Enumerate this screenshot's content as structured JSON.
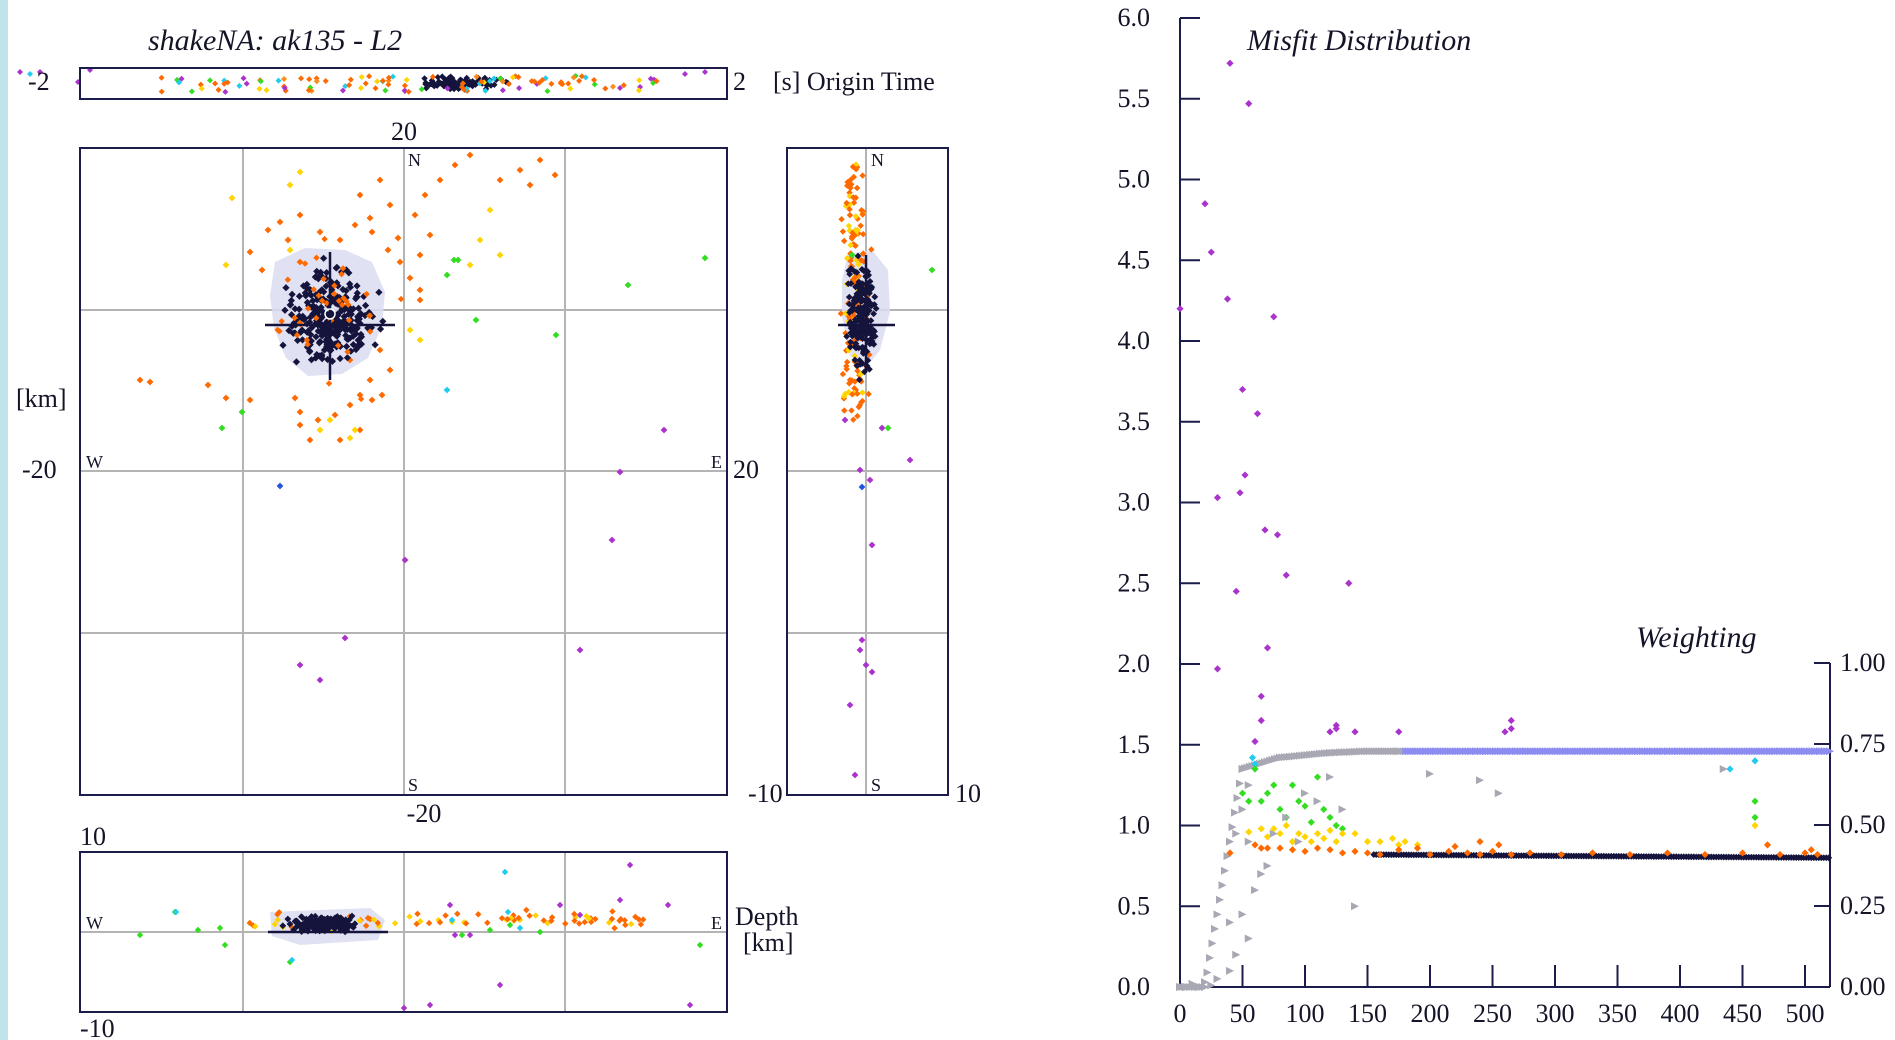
{
  "left_title": "shakeNA:  ak135 - L2",
  "origin_time": {
    "label": "[s] Origin Time",
    "min_label": "-2",
    "max_label": "2"
  },
  "map": {
    "north_label": "N",
    "south_label": "S",
    "west_label": "W",
    "east_label": "E",
    "top_tick": "20",
    "bottom_tick": "-20",
    "left_tick": "-20",
    "y_unit": "[km]",
    "grid_step_km": 10
  },
  "side_view": {
    "north_label": "N",
    "south_label": "S",
    "right_tick_mid": "20",
    "left_tick_bottom": "-10",
    "right_tick_bottom": "10"
  },
  "depth_view": {
    "top_tick": "10",
    "bottom_tick": "-10",
    "west_label": "W",
    "east_label": "E",
    "label_line1": "Depth",
    "label_line2": "[km]"
  },
  "colors": {
    "frame": "#1c1c4a",
    "grid": "#b4b4b4",
    "best": "#14143c",
    "orange": "#ff6a00",
    "orange2": "#ff8c1a",
    "yellow": "#ffd400",
    "green": "#33dd22",
    "cyan": "#22ccee",
    "blue": "#2255dd",
    "purple": "#aa33cc",
    "weight_gray": "#a8a8b4",
    "weight_blue": "#8c8cf0"
  },
  "chart_data": {
    "type": "scatter",
    "title": "Misfit Distribution",
    "secondary_title": "Weighting",
    "x_ticks": [
      "0",
      "50",
      "100",
      "150",
      "200",
      "250",
      "300",
      "350",
      "400",
      "450",
      "500"
    ],
    "y_ticks": [
      "0.0",
      "0.5",
      "1.0",
      "1.5",
      "2.0",
      "2.5",
      "3.0",
      "3.5",
      "4.0",
      "4.5",
      "5.0",
      "5.5",
      "6.0"
    ],
    "y2_ticks": [
      "0.00",
      "0.25",
      "0.50",
      "0.75",
      "1.00"
    ],
    "xlim": [
      0,
      520
    ],
    "ylim": [
      0,
      6
    ],
    "y2lim": [
      0,
      1
    ],
    "grid": false,
    "series": [
      {
        "values": [
          [
            0,
            4.2
          ],
          [
            20,
            4.85
          ],
          [
            25,
            4.55
          ],
          [
            30,
            3.03
          ],
          [
            30,
            1.97
          ],
          [
            38,
            4.26
          ],
          [
            40,
            5.72
          ],
          [
            45,
            2.45
          ],
          [
            48,
            3.06
          ],
          [
            50,
            3.7
          ],
          [
            52,
            3.17
          ],
          [
            55,
            5.47
          ],
          [
            60,
            1.52
          ],
          [
            62,
            3.55
          ],
          [
            65,
            1.8
          ],
          [
            65,
            1.65
          ],
          [
            68,
            2.83
          ],
          [
            70,
            2.1
          ],
          [
            75,
            4.15
          ],
          [
            78,
            2.8
          ],
          [
            85,
            2.55
          ],
          [
            120,
            1.58
          ],
          [
            125,
            1.62
          ],
          [
            125,
            1.6
          ],
          [
            135,
            2.5
          ],
          [
            140,
            1.58
          ],
          [
            175,
            1.58
          ],
          [
            260,
            1.58
          ],
          [
            265,
            1.6
          ],
          [
            265,
            1.65
          ]
        ]
      },
      {
        "values": [
          [
            58,
            1.42
          ],
          [
            60,
            1.38
          ],
          [
            460,
            1.4
          ],
          [
            440,
            1.35
          ]
        ]
      },
      {
        "values": [
          [
            50,
            1.2
          ],
          [
            55,
            1.15
          ],
          [
            60,
            1.35
          ],
          [
            65,
            1.15
          ],
          [
            70,
            1.2
          ],
          [
            75,
            1.25
          ],
          [
            80,
            1.1
          ],
          [
            85,
            1.05
          ],
          [
            90,
            1.25
          ],
          [
            95,
            1.15
          ],
          [
            100,
            1.12
          ],
          [
            105,
            1.02
          ],
          [
            110,
            1.3
          ],
          [
            115,
            1.1
          ],
          [
            120,
            1.05
          ],
          [
            125,
            1.0
          ],
          [
            130,
            0.98
          ],
          [
            460,
            1.15
          ],
          [
            460,
            1.05
          ]
        ]
      },
      {
        "values": [
          [
            55,
            0.96
          ],
          [
            65,
            0.98
          ],
          [
            70,
            0.93
          ],
          [
            75,
            0.98
          ],
          [
            80,
            0.95
          ],
          [
            85,
            1.0
          ],
          [
            90,
            0.9
          ],
          [
            95,
            0.95
          ],
          [
            100,
            0.93
          ],
          [
            105,
            0.9
          ],
          [
            110,
            0.95
          ],
          [
            115,
            0.92
          ],
          [
            120,
            0.97
          ],
          [
            125,
            0.9
          ],
          [
            130,
            0.95
          ],
          [
            140,
            0.95
          ],
          [
            150,
            0.9
          ],
          [
            160,
            0.9
          ],
          [
            170,
            0.92
          ],
          [
            175,
            0.88
          ],
          [
            180,
            0.9
          ],
          [
            190,
            0.88
          ],
          [
            460,
            1.0
          ]
        ]
      },
      {
        "values": [
          [
            40,
            0.83
          ],
          [
            60,
            0.88
          ],
          [
            65,
            0.86
          ],
          [
            70,
            0.86
          ],
          [
            80,
            0.86
          ],
          [
            90,
            0.85
          ],
          [
            100,
            0.84
          ],
          [
            110,
            0.86
          ],
          [
            120,
            0.85
          ],
          [
            130,
            0.83
          ],
          [
            140,
            0.84
          ],
          [
            150,
            0.83
          ],
          [
            160,
            0.82
          ],
          [
            175,
            0.85
          ],
          [
            200,
            0.82
          ],
          [
            215,
            0.84
          ],
          [
            230,
            0.83
          ],
          [
            240,
            0.82
          ],
          [
            250,
            0.84
          ],
          [
            265,
            0.82
          ],
          [
            280,
            0.83
          ],
          [
            305,
            0.82
          ],
          [
            330,
            0.83
          ],
          [
            360,
            0.82
          ],
          [
            390,
            0.83
          ],
          [
            420,
            0.82
          ],
          [
            450,
            0.83
          ],
          [
            480,
            0.82
          ],
          [
            500,
            0.83
          ],
          [
            510,
            0.82
          ],
          [
            220,
            0.87
          ],
          [
            240,
            0.9
          ],
          [
            255,
            0.88
          ],
          [
            190,
            0.86
          ],
          [
            470,
            0.88
          ],
          [
            505,
            0.85
          ]
        ]
      },
      {
        "values": [
          [
            155,
            0.82
          ],
          [
            520,
            0.8
          ]
        ]
      },
      {
        "values": [
          [
            0,
            0
          ],
          [
            5,
            0
          ],
          [
            10,
            0.02
          ],
          [
            15,
            0
          ],
          [
            20,
            0.03
          ],
          [
            25,
            0.01
          ],
          [
            30,
            0.05
          ],
          [
            40,
            0.1
          ],
          [
            45,
            0.2
          ],
          [
            40,
            0.4
          ],
          [
            50,
            0.45
          ],
          [
            55,
            0.3
          ],
          [
            60,
            0.6
          ],
          [
            55,
            0.9
          ],
          [
            50,
            1.1
          ],
          [
            45,
            0.95
          ],
          [
            50,
            1.35
          ],
          [
            55,
            1.25
          ],
          [
            65,
            0.7
          ],
          [
            70,
            0.75
          ],
          [
            75,
            0.95
          ],
          [
            85,
            1.05
          ],
          [
            95,
            0.9
          ],
          [
            100,
            1.2
          ],
          [
            110,
            1.15
          ],
          [
            120,
            1.3
          ],
          [
            130,
            1.1
          ],
          [
            140,
            0.5
          ],
          [
            200,
            1.32
          ],
          [
            240,
            1.28
          ],
          [
            255,
            1.2
          ],
          [
            435,
            1.35
          ]
        ]
      },
      {
        "values": [
          [
            0,
            0
          ],
          [
            20,
            0
          ],
          [
            50,
            1.35
          ],
          [
            80,
            1.42
          ],
          [
            120,
            1.45
          ],
          [
            150,
            1.46
          ],
          [
            175,
            1.46
          ],
          [
            520,
            1.46
          ]
        ]
      }
    ]
  }
}
